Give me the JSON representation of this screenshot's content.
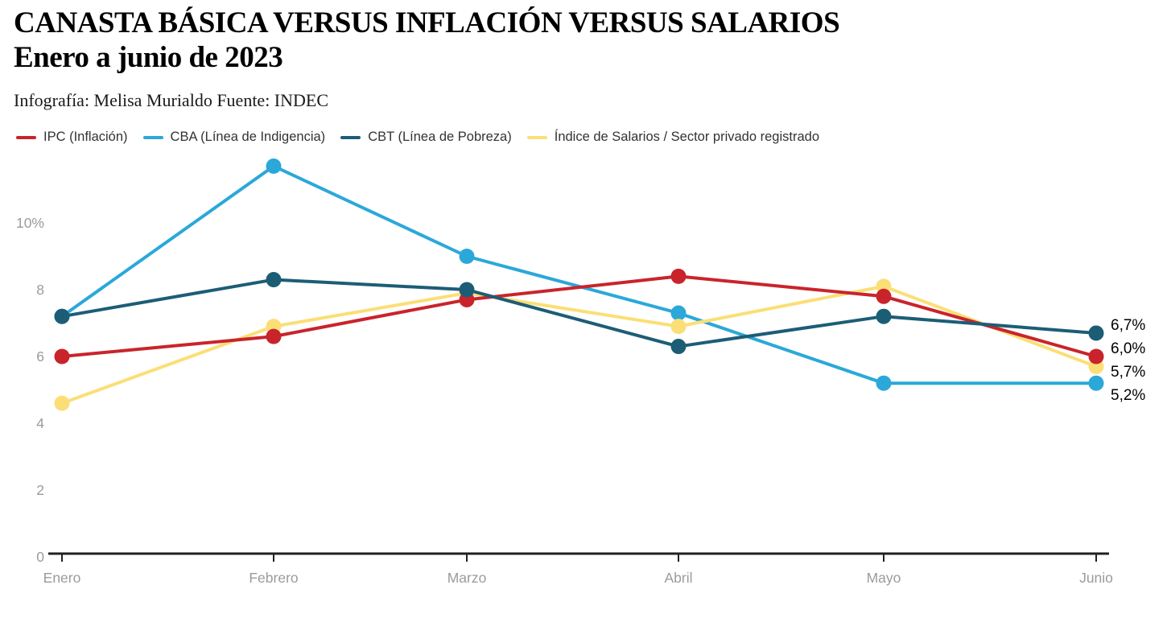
{
  "header": {
    "title_line1": "CANASTA BÁSICA VERSUS INFLACIÓN VERSUS SALARIOS",
    "title_line2": "Enero a junio de 2023",
    "credit": "Infografía: Melisa Murialdo Fuente: INDEC"
  },
  "colors": {
    "ipc": "#c9242b",
    "cba": "#2ba8d9",
    "cbt": "#1c5d76",
    "salarios": "#fbdf76",
    "axis_line": "#212121",
    "axis_text": "#9b9b9b",
    "legend_text": "#333333",
    "end_label_text": "#000000",
    "background": "#ffffff"
  },
  "chart_data": {
    "type": "line",
    "title": "CANASTA BÁSICA VERSUS INFLACIÓN VERSUS SALARIOS",
    "subtitle": "Enero a junio de 2023",
    "source": "Infografía: Melisa Murialdo Fuente: INDEC",
    "categories": [
      "Enero",
      "Febrero",
      "Marzo",
      "Abril",
      "Mayo",
      "Junio"
    ],
    "series": [
      {
        "id": "ipc",
        "name": "IPC (Inflación)",
        "color": "#c9242b",
        "values": [
          6.0,
          6.6,
          7.7,
          8.4,
          7.8,
          6.0
        ],
        "end_label": "6,0%"
      },
      {
        "id": "cba",
        "name": "CBA (Línea de Indigencia)",
        "color": "#2ba8d9",
        "values": [
          7.2,
          11.7,
          9.0,
          7.3,
          5.2,
          5.2
        ],
        "end_label": "5,2%"
      },
      {
        "id": "cbt",
        "name": "CBT (Línea de Pobreza)",
        "color": "#1c5d76",
        "values": [
          7.2,
          8.3,
          8.0,
          6.3,
          7.2,
          6.7
        ],
        "end_label": "6,7%"
      },
      {
        "id": "salarios",
        "name": "Índice de Salarios / Sector privado registrado",
        "color": "#fbdf76",
        "values": [
          4.6,
          6.9,
          7.9,
          6.9,
          8.1,
          5.7
        ],
        "end_label": "5,7%"
      }
    ],
    "y_ticks": [
      {
        "label": "10%",
        "value": 10
      },
      {
        "label": "8",
        "value": 8
      },
      {
        "label": "6",
        "value": 6
      },
      {
        "label": "4",
        "value": 4
      },
      {
        "label": "2",
        "value": 2
      },
      {
        "label": "0",
        "value": 0
      }
    ],
    "ylim": [
      0,
      12.3
    ],
    "grid": false,
    "legend_position": "top",
    "units": "%"
  }
}
